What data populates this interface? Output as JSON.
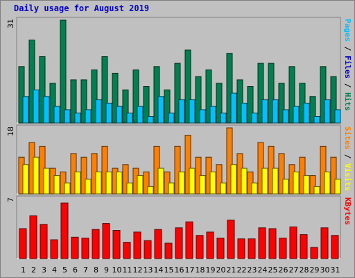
{
  "chart_data": {
    "type": "bar",
    "title": "Daily usage for August 2019",
    "categories": [
      "1",
      "2",
      "3",
      "4",
      "5",
      "6",
      "7",
      "8",
      "9",
      "10",
      "11",
      "12",
      "13",
      "14",
      "15",
      "16",
      "17",
      "18",
      "19",
      "20",
      "21",
      "22",
      "23",
      "24",
      "25",
      "26",
      "27",
      "28",
      "29",
      "30",
      "31"
    ],
    "weekend_days": [
      "3",
      "4",
      "10",
      "11",
      "17",
      "18",
      "24",
      "25",
      "31"
    ],
    "colors": {
      "background": "#c0c0c0",
      "title": "#0000cc",
      "hits": "#008050",
      "files": "#00c0ff",
      "pages": "#00c0ff",
      "visits": "#ff8000",
      "sites": "#ffff00",
      "kbytes": "#ff0000",
      "weekend_label": "#008050",
      "weekday_label": "#000000"
    },
    "panels": [
      {
        "name": "hits-files-pages",
        "max_label": "31",
        "ymax": 31,
        "side_labels": [
          {
            "text": "Pages",
            "color": "#00c0ff"
          },
          {
            "text": " / ",
            "color": "#000000"
          },
          {
            "text": "Files",
            "color": "#0000cc"
          },
          {
            "text": " / ",
            "color": "#000000"
          },
          {
            "text": "Hits",
            "color": "#008050"
          }
        ],
        "series": [
          {
            "name": "Hits",
            "color": "#008050",
            "values": [
              17,
              25,
              20,
              12,
              31,
              13,
              13,
              16,
              20,
              15,
              10,
              16,
              11,
              17,
              10,
              18,
              22,
              14,
              16,
              12,
              21,
              13,
              11,
              18,
              18,
              12,
              17,
              12,
              8,
              17,
              14
            ]
          },
          {
            "name": "Files",
            "color": "#00c0ff",
            "values": [
              8,
              10,
              8,
              5,
              4,
              3,
              4,
              7,
              6,
              5,
              3,
              5,
              2,
              8,
              3,
              7,
              7,
              4,
              5,
              3,
              9,
              6,
              3,
              7,
              7,
              4,
              5,
              6,
              2,
              7,
              4
            ]
          }
        ]
      },
      {
        "name": "visits-sites",
        "max_label": "18",
        "ymax": 18,
        "side_labels": [
          {
            "text": "Sites",
            "color": "#ff8000"
          },
          {
            "text": " / ",
            "color": "#000000"
          },
          {
            "text": "Visits",
            "color": "#ffff00"
          }
        ],
        "series": [
          {
            "name": "Visits",
            "color": "#ff8000",
            "values": [
              10,
              14,
              13,
              7,
              6,
              11,
              10,
              11,
              13,
              7,
              8,
              7,
              6,
              13,
              6,
              13,
              16,
              10,
              10,
              8,
              18,
              11,
              6,
              14,
              13,
              11,
              8,
              10,
              5,
              13,
              10
            ]
          },
          {
            "name": "Sites",
            "color": "#ffff00",
            "values": [
              8,
              10,
              7,
              5,
              3,
              6,
              4,
              6,
              6,
              6,
              3,
              5,
              2,
              7,
              3,
              6,
              7,
              5,
              6,
              3,
              8,
              7,
              3,
              7,
              7,
              4,
              6,
              5,
              2,
              6,
              4
            ]
          }
        ]
      },
      {
        "name": "kbytes",
        "max_label": "7",
        "ymax": 7,
        "side_labels": [
          {
            "text": "KBytes",
            "color": "#ff0000"
          }
        ],
        "series": [
          {
            "name": "KBytes",
            "color": "#ff0000",
            "values": [
              3.5,
              5,
              4,
              2.2,
              6.5,
              2.5,
              2.4,
              3.4,
              4.1,
              3.3,
              1.9,
              3.1,
              2.1,
              3.4,
              1.8,
              3.6,
              4.3,
              2.7,
              3.1,
              2.4,
              4.5,
              2.3,
              2.3,
              3.6,
              3.5,
              2.4,
              3.7,
              2.8,
              1.3,
              3.6,
              2.7
            ]
          }
        ]
      }
    ]
  }
}
